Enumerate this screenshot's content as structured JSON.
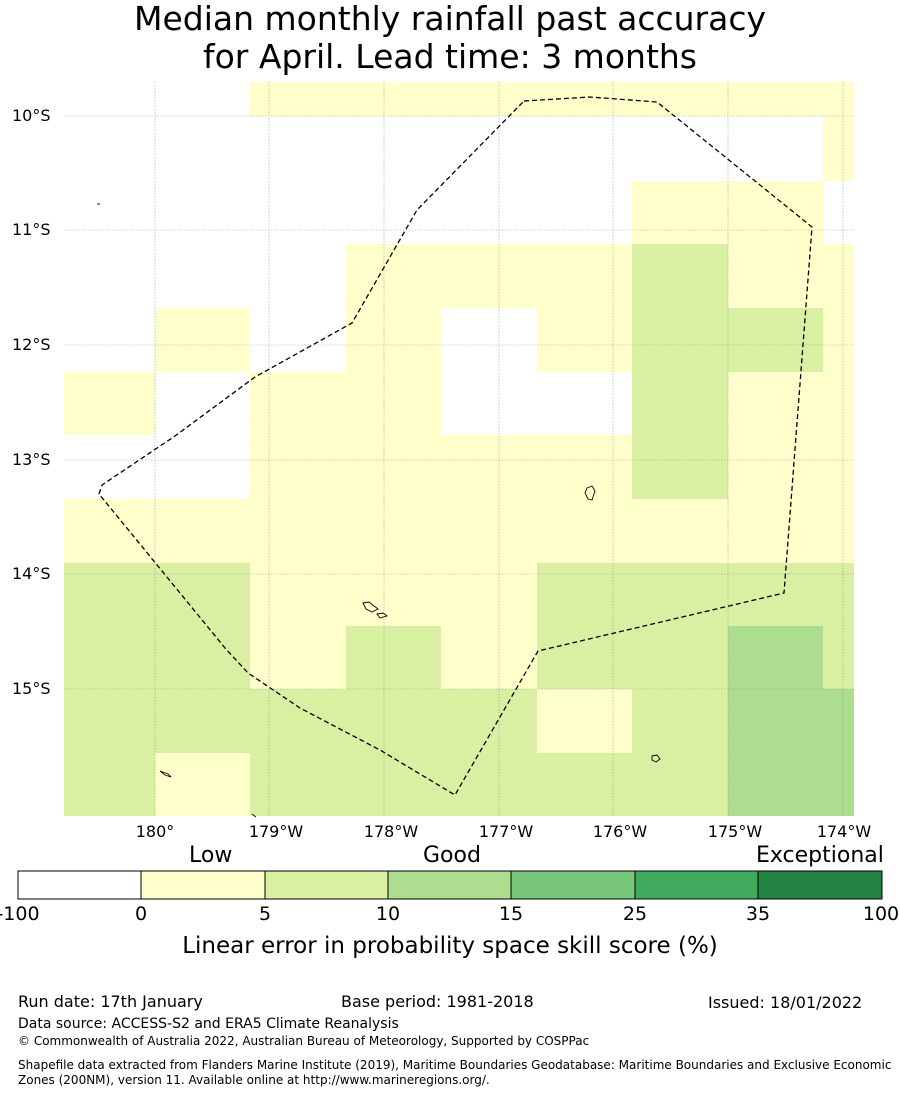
{
  "title": {
    "line1": "Median monthly rainfall past accuracy",
    "line2": "for April. Lead time: 3 months"
  },
  "map": {
    "lat_labels": [
      "10°S",
      "11°S",
      "12°S",
      "13°S",
      "14°S",
      "15°S"
    ],
    "lon_labels": [
      "180°",
      "179°W",
      "178°W",
      "177°W",
      "176°W",
      "175°W",
      "174°W"
    ],
    "boundary_style": "dashed black line (EEZ boundary)",
    "gridlines": true
  },
  "colorbar": {
    "category_labels": [
      "Low",
      "Good",
      "Exceptional"
    ],
    "ticks": [
      "-100",
      "0",
      "5",
      "10",
      "15",
      "25",
      "35",
      "100"
    ],
    "colors": [
      "#ffffff",
      "#ffffcc",
      "#d9f0a3",
      "#addd8e",
      "#78c679",
      "#41ab5d",
      "#238443"
    ],
    "label": "Linear error in probability space skill score (%)"
  },
  "footer": {
    "run_date": "Run date: 17th January",
    "base_period": "Base period: 1981-2018",
    "issued": "Issued: 18/01/2022",
    "data_source": "Data source: ACCESS-S2 and ERA5 Climate Reanalysis",
    "copyright": "© Commonwealth of Australia 2022, Australian Bureau of Meteorology, Supported by COSPPac",
    "shapefile_line1": "Shapefile data extracted from Flanders Marine Institute (2019), Maritime Boundaries Geodatabase: Maritime Boundaries and Exclusive Economic",
    "shapefile_line2": "Zones (200NM), version 11. Available online at http://www.marineregions.org/."
  }
}
